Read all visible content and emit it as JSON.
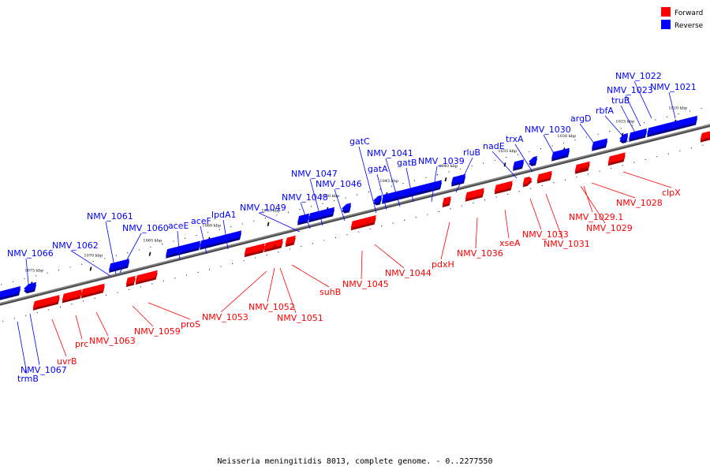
{
  "colors": {
    "forward": "#ff0000",
    "reverse": "#0000ff",
    "backbone": "#808080"
  },
  "legend": {
    "forward": "Forward",
    "reverse": "Reverse"
  },
  "caption": "Neisseria meningitidis 8013, complete genome. - 0..2277550",
  "ticks": [
    "1020 kbp",
    "1025 kbp",
    "1030 kbp",
    "1035 kbp",
    "1040 kbp",
    "1045 kbp",
    "1050 kbp",
    "1055 kbp",
    "1060 kbp",
    "1065 kbp",
    "1070 kbp",
    "1075 kbp"
  ],
  "genes_reverse": [
    "NMV_1022",
    "NMV_1021",
    "NMV_1023",
    "truB",
    "rbfA",
    "argD",
    "NMV_1030",
    "trxA",
    "nadE",
    "rluB",
    "NMV_1039",
    "gatB",
    "NMV_1041",
    "gatA",
    "gatC",
    "NMV_1046",
    "NMV_1047",
    "NMV_1048",
    "NMV_1049",
    "lpdA1",
    "aceF",
    "aceE",
    "NMV_1060",
    "NMV_1061",
    "NMV_1062",
    "NMV_1066",
    "NMV_1067",
    "trmB"
  ],
  "genes_forward": [
    "clpX",
    "NMV_1028",
    "NMV_1029.1",
    "NMV_1029",
    "NMV_1033",
    "NMV_1031",
    "xseA",
    "NMV_1036",
    "pdxH",
    "NMV_1044",
    "NMV_1045",
    "suhB",
    "NMV_1052",
    "NMV_1051",
    "NMV_1053",
    "proS",
    "NMV_1059",
    "NMV_1063",
    "prc",
    "uvrB"
  ]
}
